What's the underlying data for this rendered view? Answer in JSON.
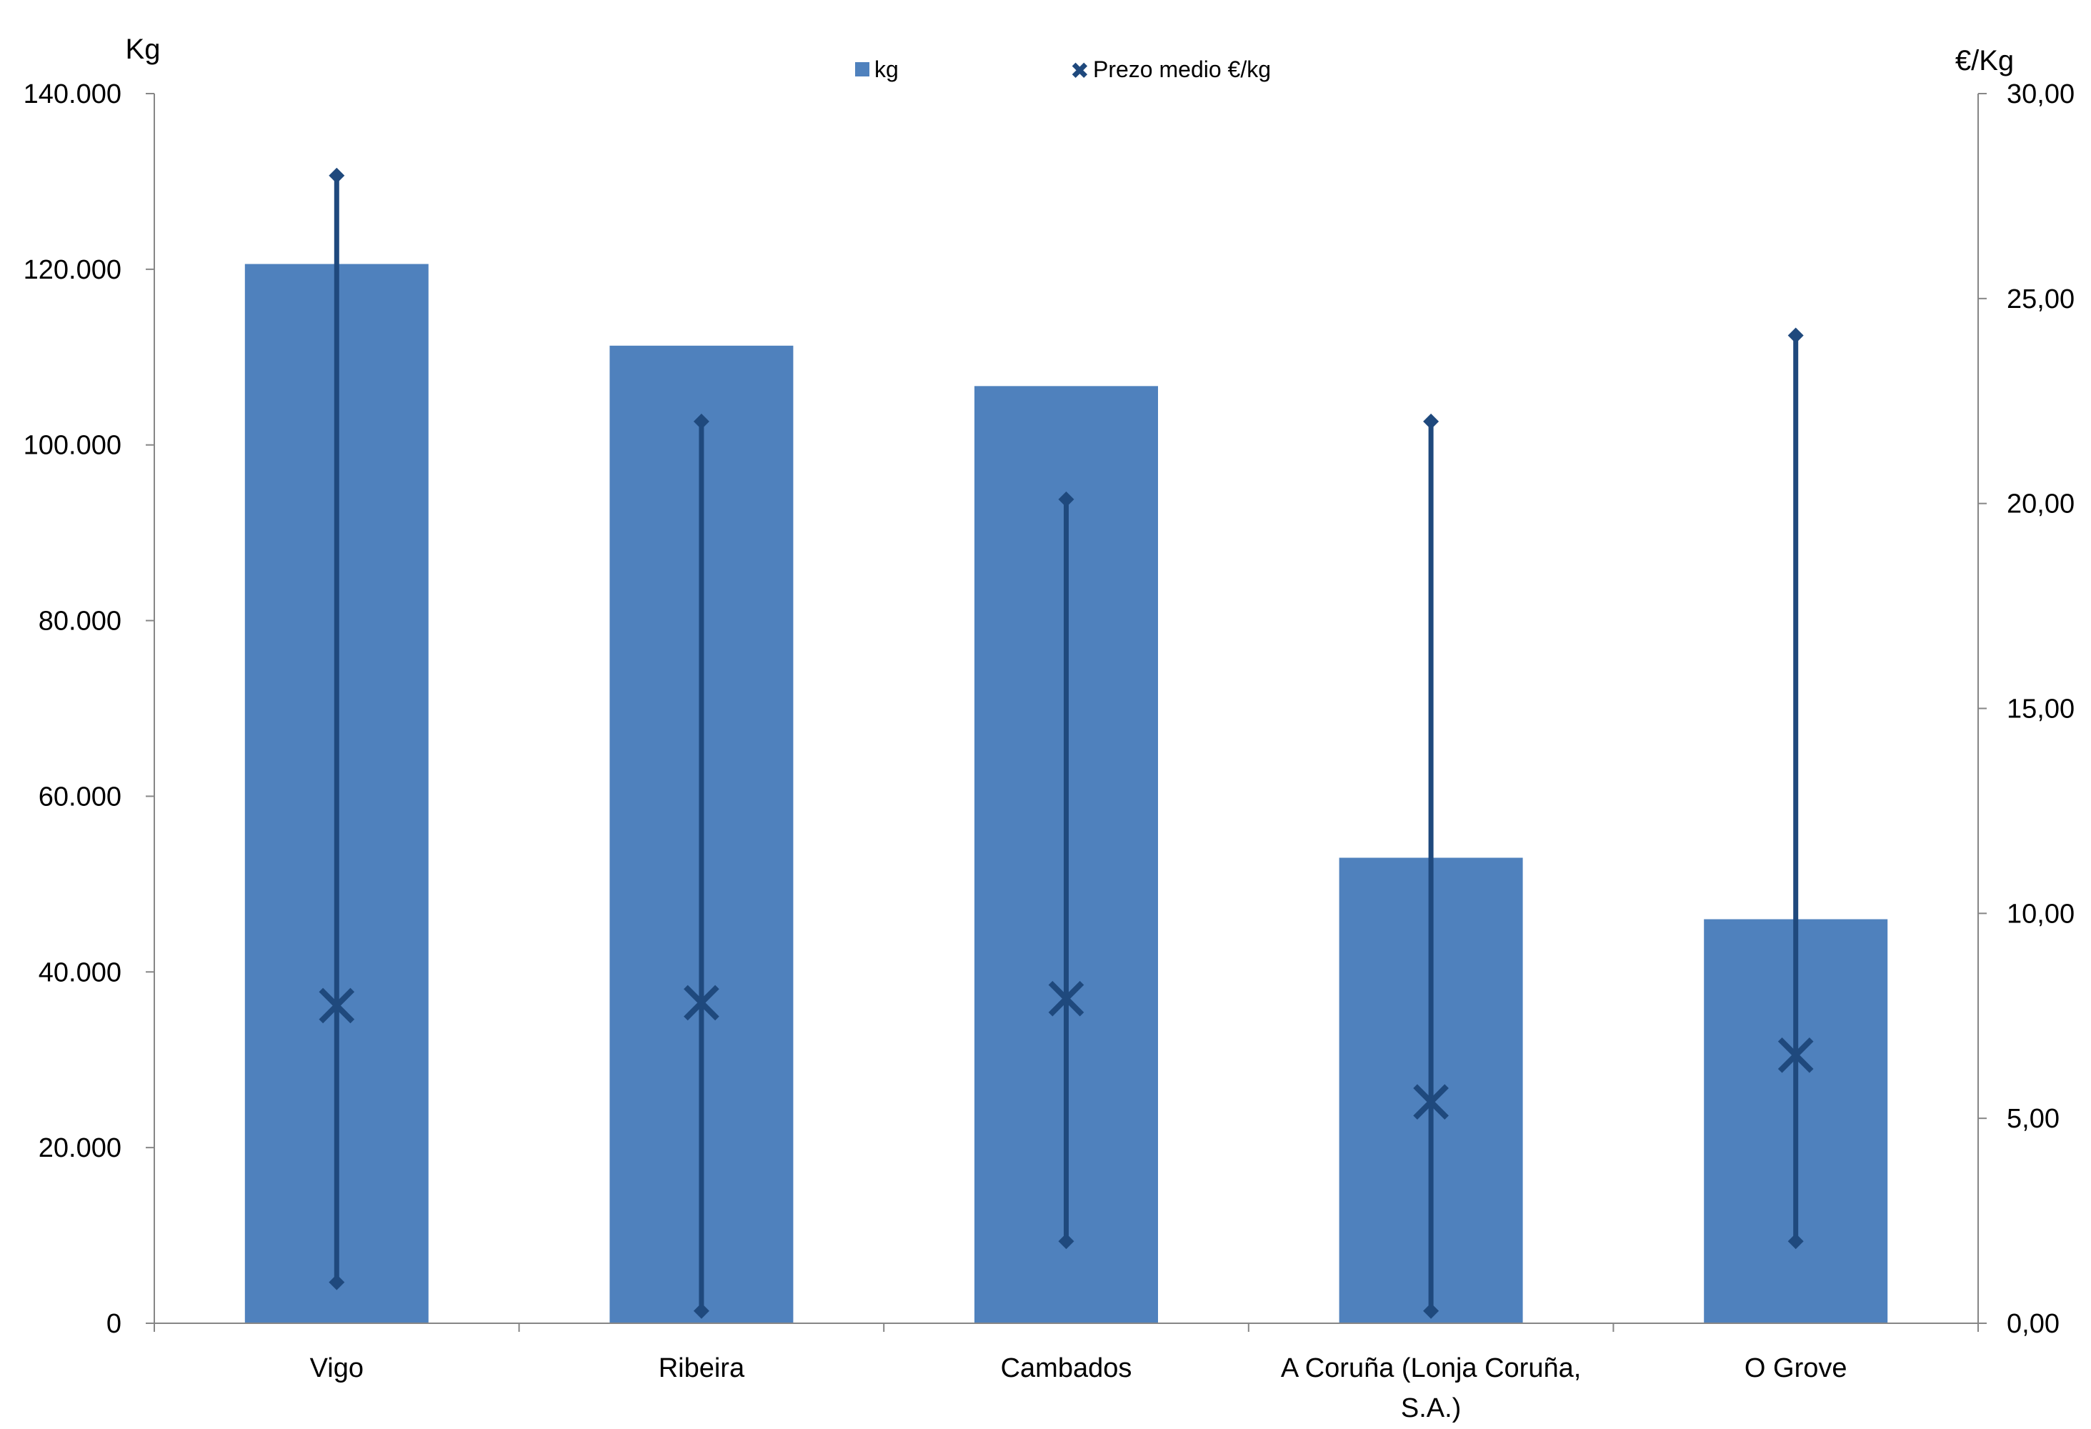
{
  "chart_data": {
    "type": "bar",
    "title": "",
    "categories": [
      "Vigo",
      "Ribeira",
      "Cambados",
      "A Coruña (Lonja Coruña, S.A.)",
      "O Grove"
    ],
    "category_label_lines": [
      [
        "Vigo"
      ],
      [
        "Ribeira"
      ],
      [
        "Cambados"
      ],
      [
        "A Coruña (Lonja Coruña,",
        "S.A.)"
      ],
      [
        "O Grove"
      ]
    ],
    "y_left": {
      "label": "Kg",
      "ylim": [
        0,
        140000
      ],
      "ticks": [
        0,
        20000,
        40000,
        60000,
        80000,
        100000,
        120000,
        140000
      ],
      "tick_labels": [
        "0",
        "20.000",
        "40.000",
        "60.000",
        "80.000",
        "100.000",
        "120.000",
        "140.000"
      ]
    },
    "y_right": {
      "label": "€/Kg",
      "ylim": [
        0,
        30
      ],
      "ticks": [
        0,
        5,
        10,
        15,
        20,
        25,
        30
      ],
      "tick_labels": [
        "0,00",
        "5,00",
        "10,00",
        "15,00",
        "20,00",
        "25,00",
        "30,00"
      ]
    },
    "series": [
      {
        "name": "kg",
        "type": "bar",
        "axis": "left",
        "color": "#4F81BD",
        "values": [
          120600,
          111300,
          106700,
          53000,
          46000
        ]
      },
      {
        "name": "Prezo medio €/kg",
        "type": "high-low-avg",
        "axis": "right",
        "color": "#1F497D",
        "avg": [
          7.75,
          7.82,
          7.92,
          5.4,
          6.54
        ],
        "max": [
          28.0,
          22.0,
          20.1,
          22.0,
          24.1
        ],
        "min": [
          1.0,
          0.3,
          2.0,
          0.3,
          2.0
        ]
      }
    ],
    "legend": {
      "placement": "top-center",
      "entries": [
        "kg",
        "Prezo medio €/kg"
      ]
    },
    "grid": false
  }
}
